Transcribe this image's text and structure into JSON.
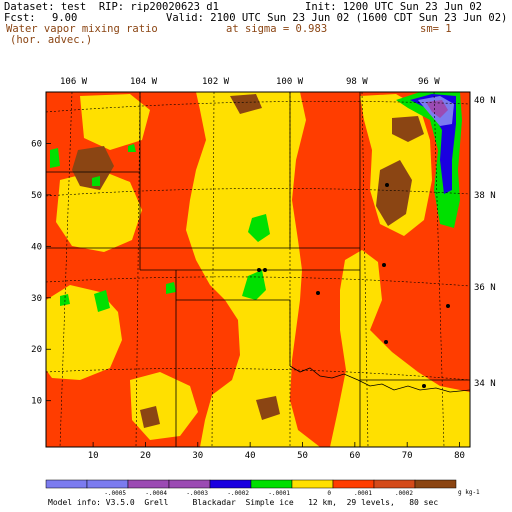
{
  "header": {
    "dataset_line": "Dataset: test  RIP: rip20020623 d1",
    "fcst_label": "Fcst:",
    "fcst_value": "9.00",
    "init": "Init: 1200 UTC Sun 23 Jun 02",
    "valid": "Valid: 2100 UTC Sun 23 Jun 02 (1600 CDT Sun 23 Jun 02)",
    "field_name": "Water vapor mixing ratio",
    "field_sub": "(hor. advec.)",
    "sigma": "at sigma = 0.983",
    "sm": "sm= 1"
  },
  "map": {
    "lon_labels": [
      "106 W",
      "104 W",
      "102 W",
      "100 W",
      "98 W",
      "96 W"
    ],
    "lat_labels": [
      "40 N",
      "38 N",
      "36 N",
      "34 N"
    ],
    "x_ticks": [
      "10",
      "20",
      "30",
      "40",
      "50",
      "60",
      "70",
      "80"
    ],
    "y_ticks": [
      "10",
      "20",
      "30",
      "40",
      "50",
      "60"
    ],
    "x_range": [
      1,
      82
    ],
    "y_range": [
      1,
      70
    ]
  },
  "colorbar": {
    "colors": [
      "#7b7bef",
      "#7b7bef",
      "#9b4bb3",
      "#9b4bb3",
      "#1a00e0",
      "#00e000",
      "#ffe000",
      "#ff3d00",
      "#d44a1a",
      "#8b4513"
    ],
    "labels": [
      "-.0005",
      "-.0004",
      "-.0003",
      "-.0002",
      "-.0001",
      "0",
      ".0001",
      ".0002"
    ],
    "units": "g kg-1"
  },
  "footer": {
    "model_info": "Model info: V3.5.0  Grell     Blackadar  Simple ice   12 km,  29 levels,   80 sec"
  }
}
